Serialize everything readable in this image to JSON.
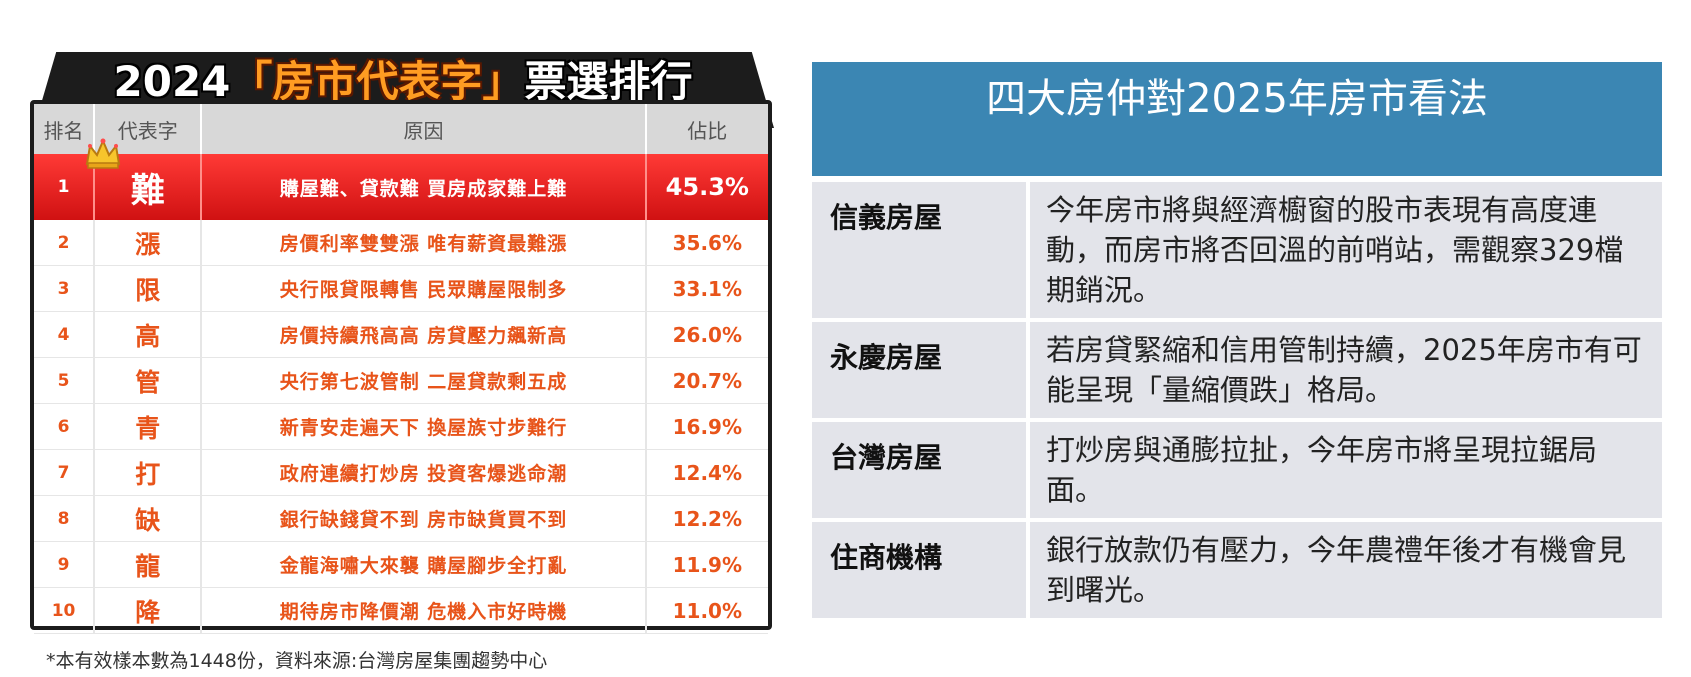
{
  "ranking": {
    "title_year": "2024",
    "title_open_quote": "「",
    "title_highlight": "房市代表字",
    "title_close_quote": "」",
    "title_suffix": "票選排行",
    "headers": {
      "rank": "排名",
      "char": "代表字",
      "reason": "原因",
      "share": "佔比"
    },
    "rows": [
      {
        "rank": "1",
        "char": "難",
        "reason": "購屋難、貸款難 買房成家難上難",
        "share": "45.3%"
      },
      {
        "rank": "2",
        "char": "漲",
        "reason": "房價利率雙雙漲 唯有薪資最難漲",
        "share": "35.6%"
      },
      {
        "rank": "3",
        "char": "限",
        "reason": "央行限貸限轉售 民眾購屋限制多",
        "share": "33.1%"
      },
      {
        "rank": "4",
        "char": "高",
        "reason": "房價持續飛高高 房貸壓力飆新高",
        "share": "26.0%"
      },
      {
        "rank": "5",
        "char": "管",
        "reason": "央行第七波管制 二屋貸款剩五成",
        "share": "20.7%"
      },
      {
        "rank": "6",
        "char": "青",
        "reason": "新青安走遍天下 換屋族寸步難行",
        "share": "16.9%"
      },
      {
        "rank": "7",
        "char": "打",
        "reason": "政府連續打炒房 投資客爆逃命潮",
        "share": "12.4%"
      },
      {
        "rank": "8",
        "char": "缺",
        "reason": "銀行缺錢貸不到 房市缺貨買不到",
        "share": "12.2%"
      },
      {
        "rank": "9",
        "char": "龍",
        "reason": "金龍海嘯大來襲 購屋腳步全打亂",
        "share": "11.9%"
      },
      {
        "rank": "10",
        "char": "降",
        "reason": "期待房市降價潮 危機入市好時機",
        "share": "11.0%"
      }
    ],
    "footnote": "*本有效樣本數為1448份，資料來源:台灣房屋集團趨勢中心"
  },
  "opinions": {
    "title": "四大房仲對2025年房市看法",
    "rows": [
      {
        "agency": "信義房屋",
        "view": "今年房市將與經濟櫥窗的股市表現有高度連動，而房市將否回溫的前哨站，需觀察329檔期銷況。"
      },
      {
        "agency": "永慶房屋",
        "view": "若房貸緊縮和信用管制持續，2025年房市有可能呈現「量縮價跌」格局。"
      },
      {
        "agency": "台灣房屋",
        "view": "打炒房與通膨拉扯，今年房市將呈現拉鋸局面。"
      },
      {
        "agency": "住商機構",
        "view": "銀行放款仍有壓力，今年農禮年後才有機會見到曙光。"
      }
    ]
  },
  "colors": {
    "accent_orange": "#e8541a",
    "top_row_red": "#d01112",
    "header_blue": "#3b86b3",
    "row_gray": "#e3e4ea"
  }
}
